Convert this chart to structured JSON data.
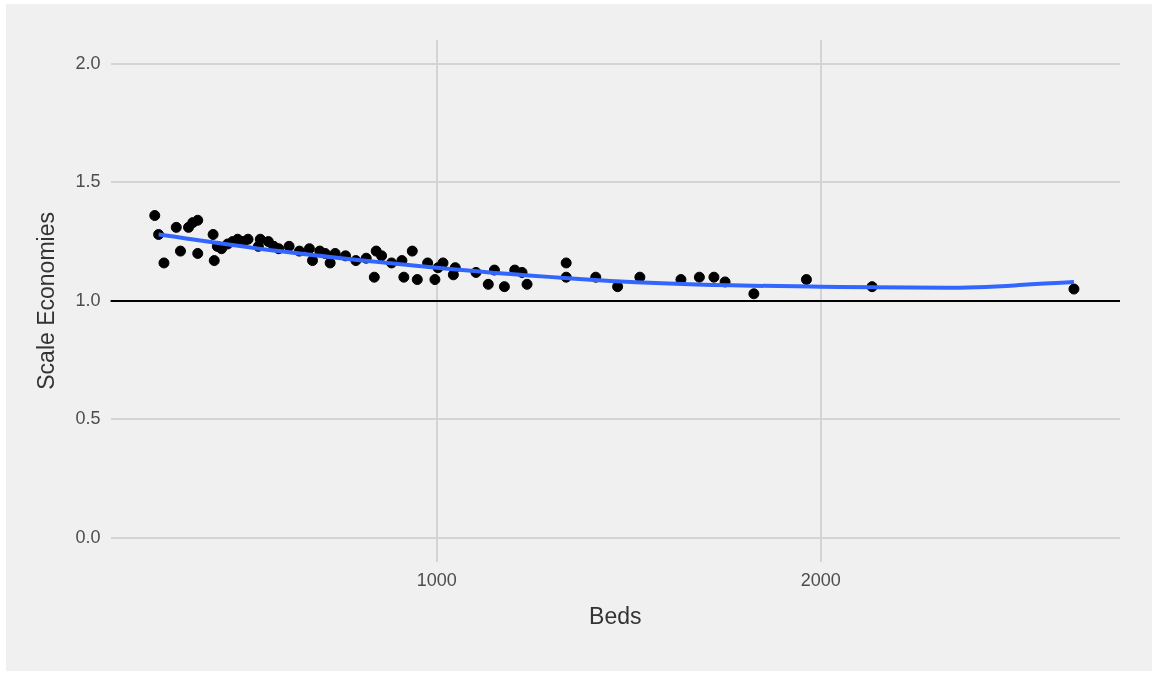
{
  "chart_data": {
    "type": "scatter",
    "xlabel": "Beds",
    "ylabel": "Scale Economies",
    "xlim": [
      150,
      2780
    ],
    "ylim": [
      -0.1,
      2.1
    ],
    "xticks": [
      1000,
      2000
    ],
    "yticks": [
      {
        "value": 0,
        "label": "0.0"
      },
      {
        "value": 0.5,
        "label": "0.5"
      },
      {
        "value": 1,
        "label": "1.0"
      },
      {
        "value": 1.5,
        "label": "1.5"
      },
      {
        "value": 2,
        "label": "2.0"
      }
    ],
    "grid": true,
    "legend": false,
    "marker": "circle",
    "ref_lines": [
      {
        "axis": "y",
        "value": 1,
        "color": "#000000"
      }
    ],
    "series": [
      {
        "color": "#000000",
        "x": [
          265,
          275,
          289,
          321,
          332,
          353,
          364,
          377,
          377,
          417,
          420,
          428,
          439,
          455,
          468,
          481,
          495,
          508,
          535,
          540,
          561,
          575,
          588,
          615,
          642,
          668,
          676,
          695,
          709,
          722,
          735,
          762,
          789,
          816,
          837,
          842,
          856,
          882,
          909,
          914,
          936,
          949,
          976,
          995,
          1003,
          1016,
          1043,
          1048,
          1102,
          1134,
          1150,
          1176,
          1203,
          1222,
          1235,
          1337,
          1337,
          1414,
          1471,
          1529,
          1636,
          1684,
          1722,
          1751,
          1826,
          1963,
          2134,
          2660
        ],
        "values": [
          1.36,
          1.28,
          1.16,
          1.31,
          1.21,
          1.31,
          1.33,
          1.34,
          1.2,
          1.28,
          1.17,
          1.23,
          1.22,
          1.24,
          1.25,
          1.26,
          1.25,
          1.26,
          1.23,
          1.26,
          1.25,
          1.23,
          1.22,
          1.23,
          1.21,
          1.22,
          1.17,
          1.21,
          1.2,
          1.16,
          1.2,
          1.19,
          1.17,
          1.18,
          1.1,
          1.21,
          1.19,
          1.16,
          1.17,
          1.1,
          1.21,
          1.09,
          1.16,
          1.09,
          1.14,
          1.16,
          1.11,
          1.14,
          1.12,
          1.07,
          1.13,
          1.06,
          1.13,
          1.12,
          1.07,
          1.16,
          1.1,
          1.1,
          1.06,
          1.1,
          1.09,
          1.1,
          1.1,
          1.08,
          1.03,
          1.09,
          1.06,
          1.05
        ]
      },
      {
        "type": "line",
        "color": "#3366ff",
        "marker": "none",
        "x": [
          275,
          588,
          1000,
          1390,
          1658,
          2000,
          2326,
          2660
        ],
        "values": [
          1.28,
          1.21,
          1.14,
          1.09,
          1.07,
          1.06,
          1.055,
          1.08
        ]
      }
    ]
  }
}
